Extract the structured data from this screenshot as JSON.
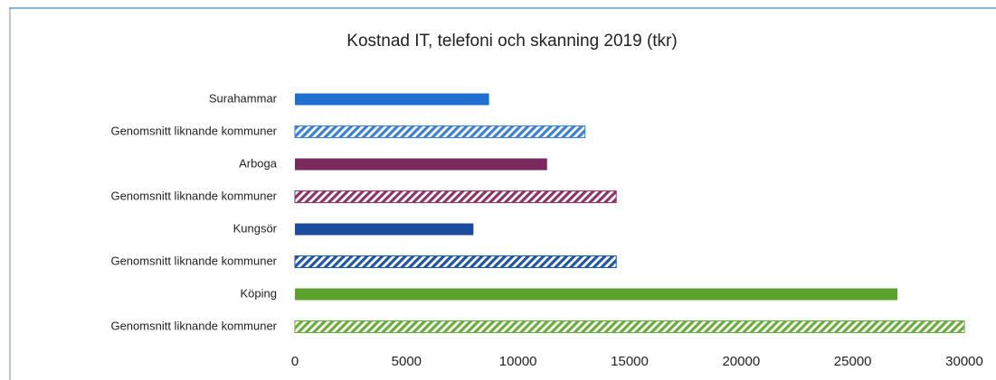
{
  "chart_data": {
    "type": "bar",
    "orientation": "horizontal",
    "title": "Kostnad IT, telefoni och skanning 2019 (tkr)",
    "categories": [
      "Surahammar",
      "Genomsnitt liknande kommuner",
      "Arboga",
      "Genomsnitt liknande kommuner",
      "Kungsör",
      "Genomsnitt liknande kommuner",
      "Köping",
      "Genomsnitt liknande kommuner"
    ],
    "values": [
      8700,
      13000,
      11300,
      14400,
      8000,
      14400,
      27000,
      30000
    ],
    "colors": [
      "#1f6fd1",
      "#3a7fd8",
      "#7a2a5c",
      "#8a3468",
      "#1b4c9e",
      "#1f55a8",
      "#5ba22d",
      "#6aac3a"
    ],
    "hatched": [
      false,
      true,
      false,
      true,
      false,
      true,
      false,
      true
    ],
    "xlim": [
      0,
      30000
    ],
    "xticks": [
      0,
      5000,
      10000,
      15000,
      20000,
      25000,
      30000
    ],
    "grid": false
  }
}
